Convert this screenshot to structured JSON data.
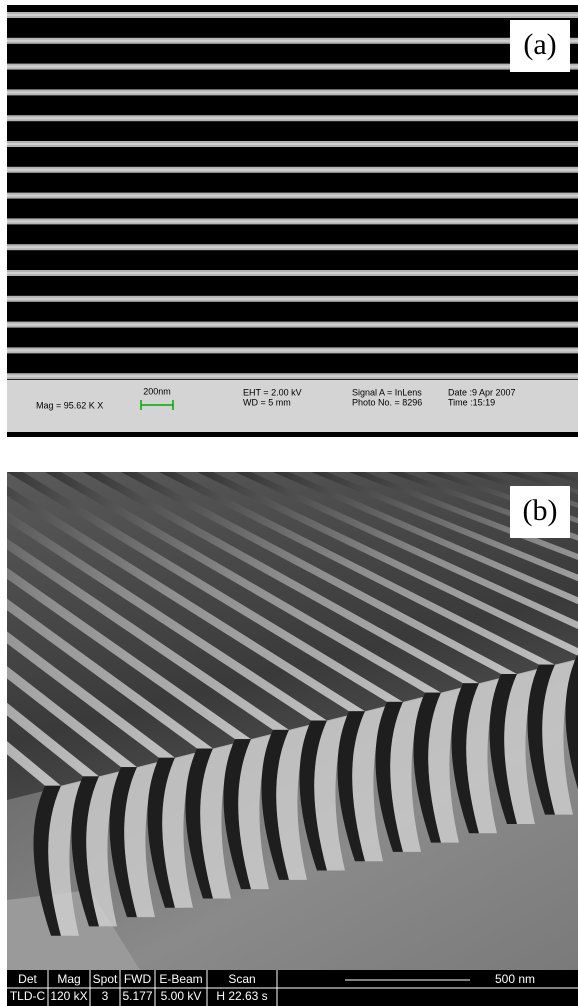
{
  "panel_a": {
    "label": "(a)",
    "info": {
      "mag": "Mag = 95.62 K X",
      "scale": "200nm",
      "eht": "EHT = 2.00 kV",
      "wd": "WD =  5 mm",
      "signal": "Signal A = InLens",
      "photo": "Photo No. = 8296",
      "date": "Date :9 Apr 2007",
      "time": "Time :15:19"
    }
  },
  "panel_b": {
    "label": "(b)",
    "info": {
      "headers": [
        "Det",
        "Mag",
        "Spot",
        "FWD",
        "E-Beam",
        "Scan"
      ],
      "values": [
        "TLD-C",
        "120 kX",
        "3",
        "5.177",
        "5.00 kV",
        "H 22.63 s"
      ],
      "scale": "500 nm"
    }
  }
}
